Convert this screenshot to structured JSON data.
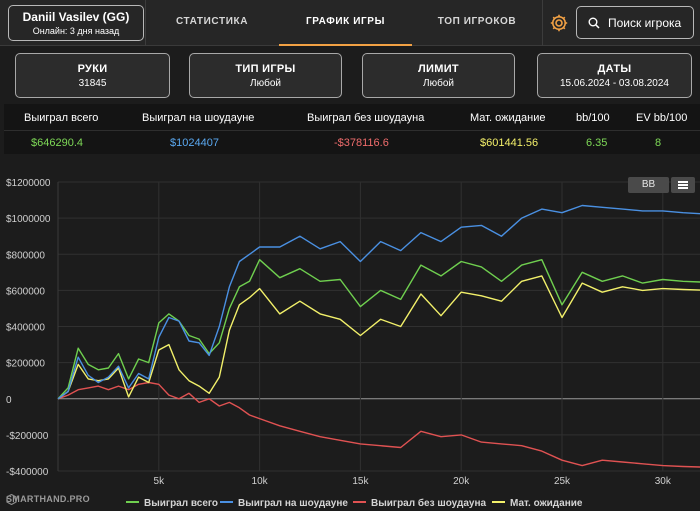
{
  "player": {
    "name": "Daniil Vasilev (GG)",
    "status": "Онлайн: 3 дня назад"
  },
  "nav": {
    "tabs": [
      {
        "label": "СТАТИСТИКА",
        "active": false
      },
      {
        "label": "ГРАФИК ИГРЫ",
        "active": true
      },
      {
        "label": "ТОП ИГРОКОВ",
        "active": false
      }
    ],
    "settings_icon": "gear-icon",
    "search_icon": "search-icon",
    "search_placeholder": "Поиск игрока",
    "accent_color": "#f2a144"
  },
  "filters": [
    {
      "label": "РУКИ",
      "value": "31845"
    },
    {
      "label": "ТИП ИГРЫ",
      "value": "Любой"
    },
    {
      "label": "ЛИМИТ",
      "value": "Любой"
    },
    {
      "label": "ДАТЫ",
      "value": "15.06.2024 - 03.08.2024"
    }
  ],
  "stats": {
    "headers": [
      "Выиграл всего",
      "Выиграл на шоудауне",
      "Выиграл без шоудауна",
      "Мат. ожидание",
      "bb/100",
      "EV bb/100"
    ],
    "values": [
      "$646290.4",
      "$1024407",
      "-$378116.6",
      "$601441.56",
      "6.35",
      "8"
    ],
    "colors": [
      "#7ed957",
      "#5aa8f0",
      "#ef6c6c",
      "#f4f06a",
      "#7ed957",
      "#7ed957"
    ]
  },
  "chart_controls": {
    "bb_label": "BB",
    "menu_icon": "hamburger-menu-icon"
  },
  "brand": {
    "name": "SMARTHAND.PRO"
  },
  "chart_data": {
    "type": "line",
    "xlabel": "",
    "ylabel": "",
    "xlim": [
      0,
      31845
    ],
    "ylim": [
      -400000,
      1200000
    ],
    "x_ticks": [
      5000,
      10000,
      15000,
      20000,
      25000,
      30000
    ],
    "x_tick_labels": [
      "5k",
      "10k",
      "15k",
      "20k",
      "25k",
      "30k"
    ],
    "y_ticks": [
      -400000,
      -200000,
      0,
      200000,
      400000,
      600000,
      800000,
      1000000,
      1200000
    ],
    "y_tick_labels": [
      "-$400000",
      "-$200000",
      "0",
      "$200000",
      "$400000",
      "$600000",
      "$800000",
      "$1000000",
      "$1200000"
    ],
    "grid": true,
    "legend_position": "bottom",
    "x": [
      0,
      500,
      1000,
      1500,
      2000,
      2500,
      3000,
      3500,
      4000,
      4500,
      5000,
      5500,
      6000,
      6500,
      7000,
      7500,
      8000,
      8500,
      9000,
      9500,
      10000,
      11000,
      12000,
      13000,
      14000,
      15000,
      16000,
      17000,
      18000,
      19000,
      20000,
      21000,
      22000,
      23000,
      24000,
      25000,
      26000,
      27000,
      28000,
      29000,
      30000,
      31000,
      31845
    ],
    "series": [
      {
        "name": "Выиграл всего",
        "color": "#6fcf4f",
        "values": [
          0,
          60000,
          280000,
          190000,
          160000,
          170000,
          250000,
          110000,
          220000,
          200000,
          420000,
          470000,
          430000,
          350000,
          330000,
          250000,
          310000,
          500000,
          620000,
          650000,
          770000,
          670000,
          720000,
          650000,
          660000,
          510000,
          600000,
          550000,
          740000,
          680000,
          760000,
          730000,
          650000,
          740000,
          770000,
          520000,
          700000,
          650000,
          680000,
          640000,
          660000,
          650000,
          646290
        ]
      },
      {
        "name": "Выиграл на шоудауне",
        "color": "#4a90e2",
        "values": [
          0,
          40000,
          230000,
          130000,
          90000,
          120000,
          180000,
          60000,
          140000,
          110000,
          340000,
          450000,
          430000,
          320000,
          310000,
          240000,
          400000,
          620000,
          760000,
          800000,
          840000,
          840000,
          900000,
          830000,
          870000,
          760000,
          870000,
          820000,
          920000,
          870000,
          950000,
          960000,
          900000,
          1000000,
          1050000,
          1030000,
          1070000,
          1060000,
          1050000,
          1040000,
          1040000,
          1030000,
          1024407
        ]
      },
      {
        "name": "Выиграл без шоудауна",
        "color": "#e05252",
        "values": [
          0,
          20000,
          50000,
          60000,
          70000,
          50000,
          70000,
          50000,
          80000,
          90000,
          80000,
          20000,
          0,
          30000,
          -20000,
          0,
          -40000,
          -20000,
          -50000,
          -90000,
          -110000,
          -150000,
          -180000,
          -210000,
          -230000,
          -250000,
          -260000,
          -270000,
          -180000,
          -210000,
          -200000,
          -240000,
          -250000,
          -260000,
          -290000,
          -340000,
          -370000,
          -340000,
          -350000,
          -360000,
          -370000,
          -375000,
          -378117
        ]
      },
      {
        "name": "Мат. ожидание",
        "color": "#f2f06a",
        "values": [
          0,
          40000,
          190000,
          110000,
          100000,
          110000,
          170000,
          10000,
          120000,
          90000,
          270000,
          300000,
          160000,
          100000,
          70000,
          30000,
          120000,
          380000,
          520000,
          560000,
          610000,
          470000,
          540000,
          470000,
          440000,
          350000,
          440000,
          400000,
          580000,
          460000,
          590000,
          570000,
          540000,
          650000,
          680000,
          450000,
          640000,
          590000,
          620000,
          600000,
          610000,
          605000,
          601442
        ]
      }
    ]
  }
}
